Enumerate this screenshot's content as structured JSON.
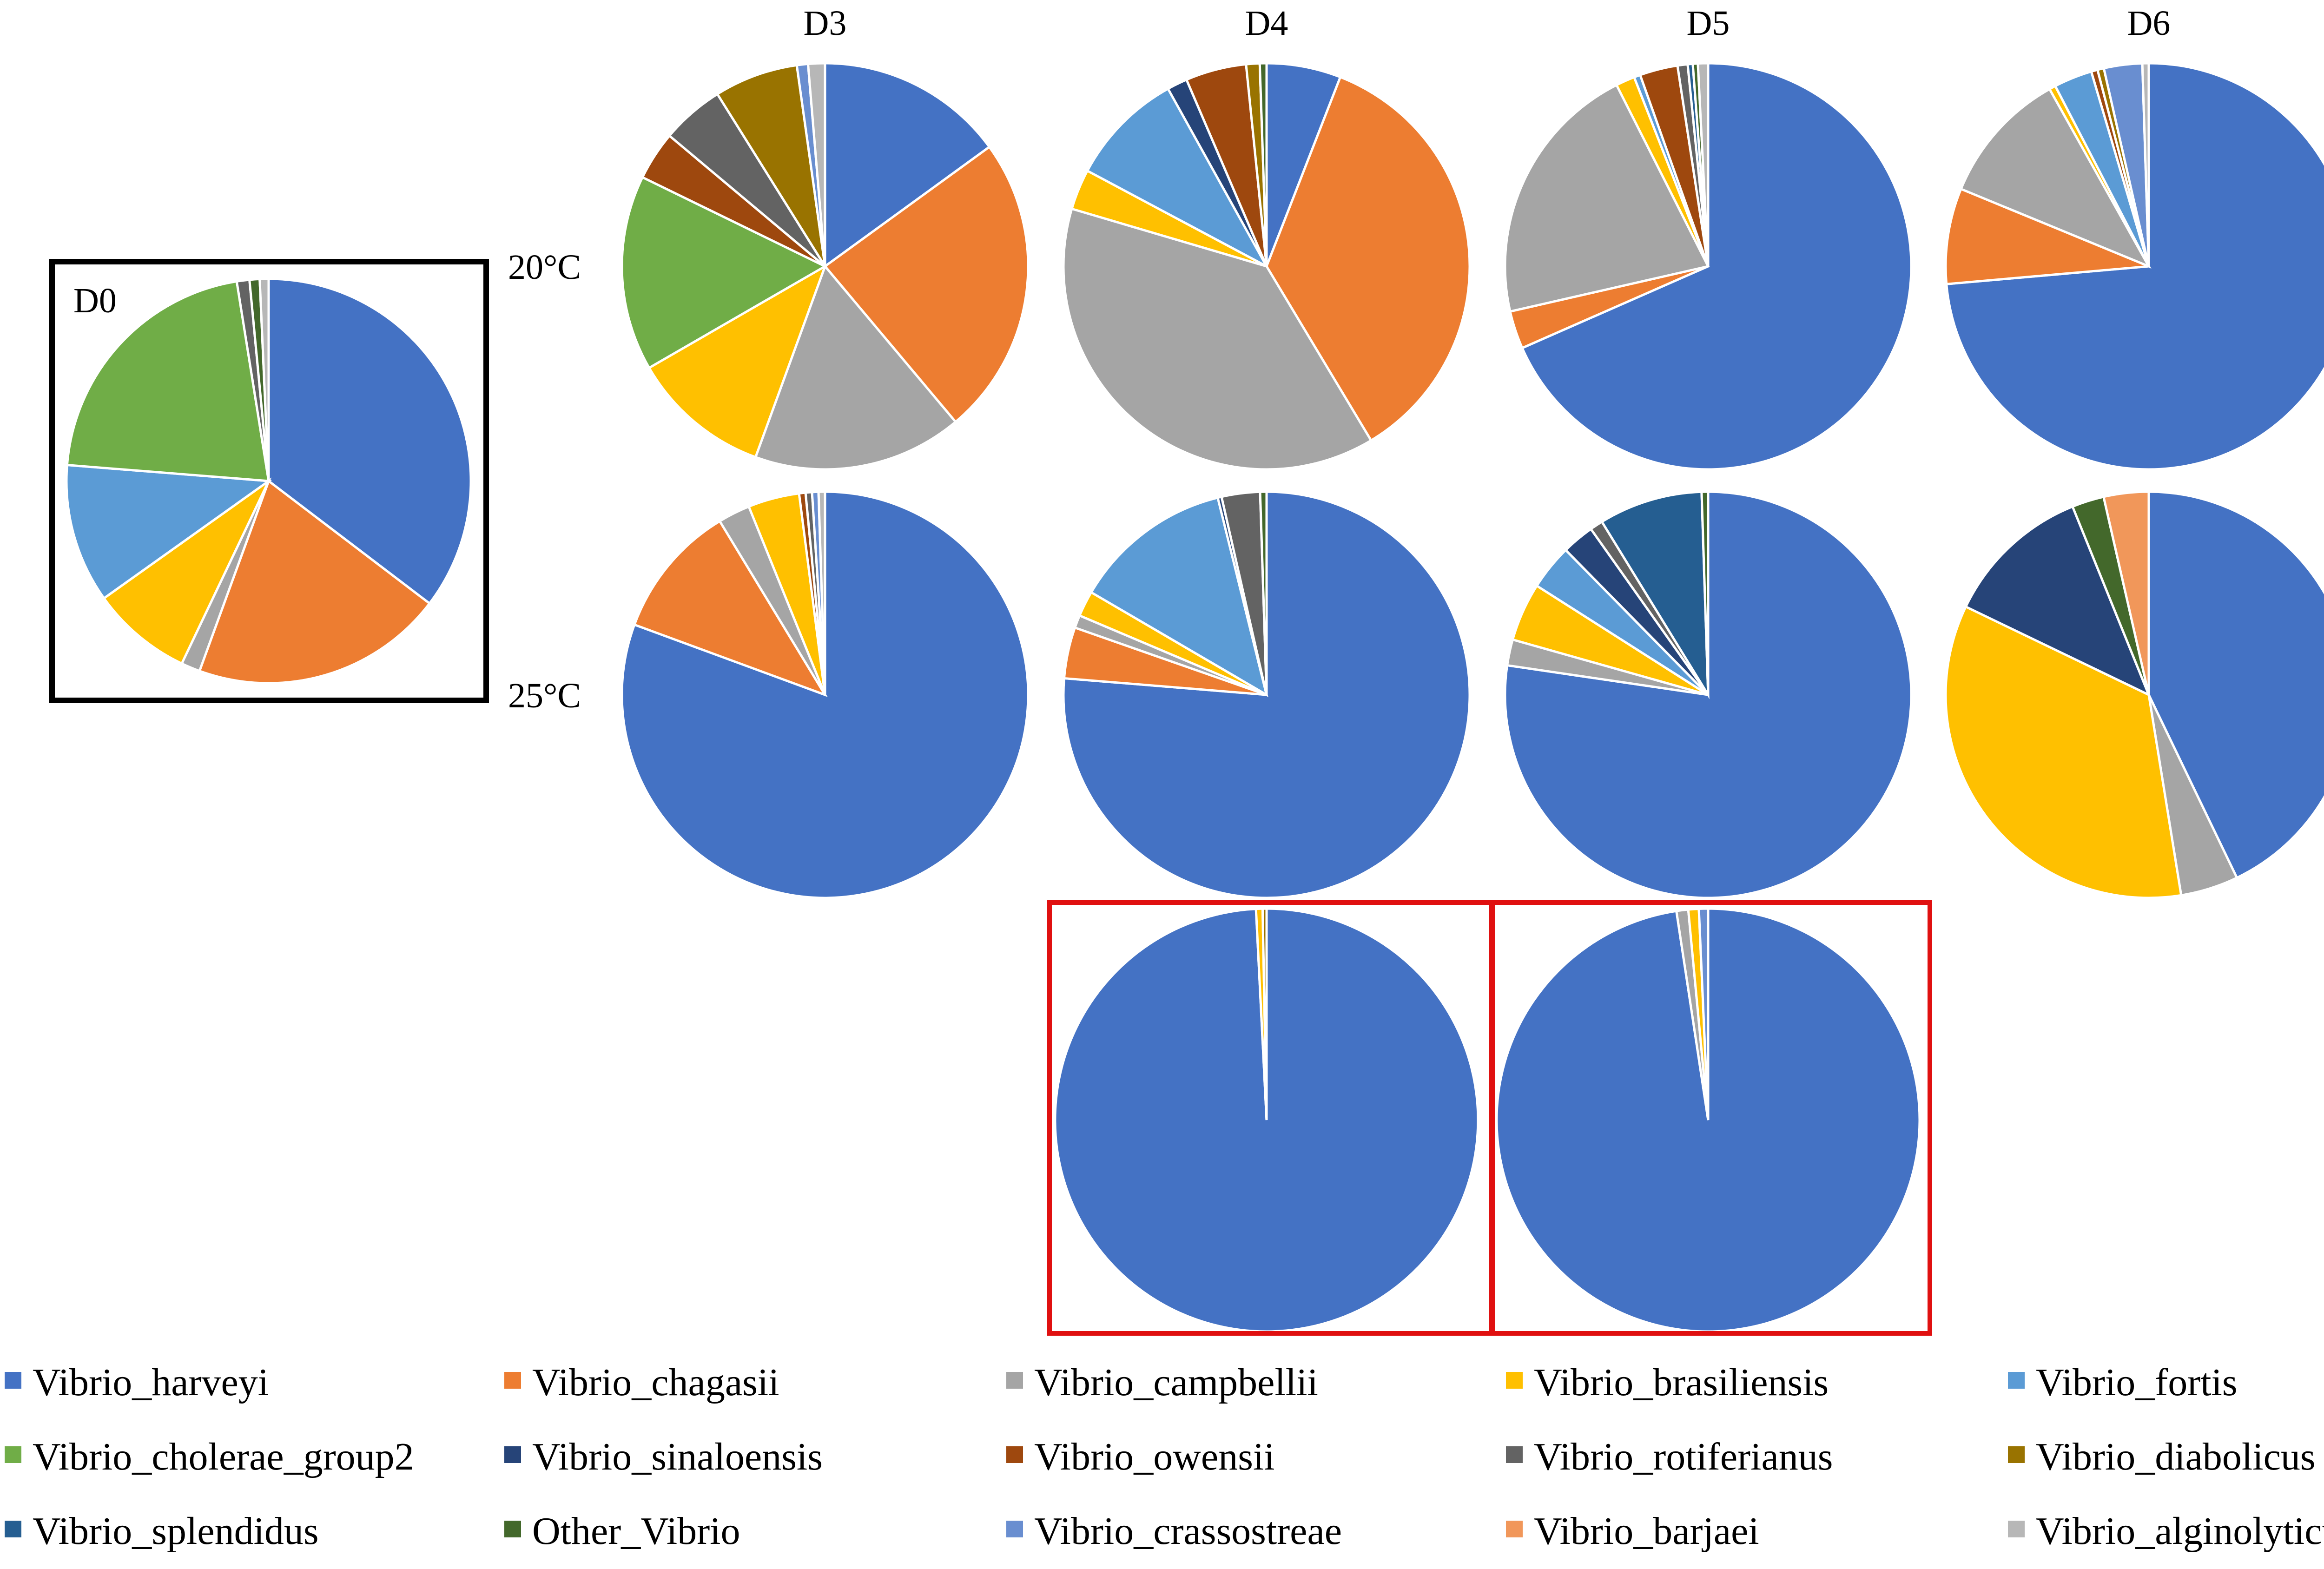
{
  "chart_data": {
    "type": "pie",
    "column_headers": [
      "D3",
      "D4",
      "D5",
      "D6"
    ],
    "row_labels": [
      "20°C",
      "25°C"
    ],
    "species": [
      "Vibrio_harveyi",
      "Vibrio_chagasii",
      "Vibrio_campbellii",
      "Vibrio_brasiliensis",
      "Vibrio_fortis",
      "Vibrio_cholerae_group2",
      "Vibrio_sinaloensis",
      "Vibrio_owensii",
      "Vibrio_rotiferianus",
      "Vibrio_diabolicus",
      "Vibrio_splendidus",
      "Other_Vibrio",
      "Vibrio_crassostreae",
      "Vibrio_barjaei",
      "Vibrio_alginolyticus"
    ],
    "colors": [
      "#4472C4",
      "#ED7D31",
      "#A5A5A5",
      "#FFC000",
      "#5B9BD5",
      "#70AD47",
      "#264478",
      "#9E480E",
      "#636363",
      "#997300",
      "#255E91",
      "#43682B",
      "#698ED0",
      "#F1975A",
      "#B7B7B7"
    ],
    "pies": [
      {
        "id": "D0",
        "label": "D0",
        "highlight": "black",
        "values": [
          35,
          20,
          1.5,
          8,
          11,
          21,
          0,
          0,
          1,
          0,
          0,
          0.8,
          0,
          0,
          0.7
        ]
      },
      {
        "id": "D3-20",
        "values": [
          13.5,
          21.5,
          15,
          10,
          0,
          14,
          0,
          3.5,
          4.5,
          6,
          0,
          0,
          0.8,
          0,
          1.2
        ]
      },
      {
        "id": "D4-20",
        "values": [
          5.5,
          33,
          35.5,
          3,
          8.5,
          0,
          1.5,
          4.5,
          0,
          1,
          0,
          0.5,
          0,
          0,
          0
        ]
      },
      {
        "id": "D5-20",
        "values": [
          68,
          3,
          21,
          1.5,
          0.5,
          0,
          0,
          3,
          0.8,
          0,
          0.4,
          0.4,
          0,
          0,
          0.8
        ]
      },
      {
        "id": "D6-20",
        "values": [
          72.5,
          7.5,
          10.5,
          0.5,
          3,
          0,
          0,
          0.5,
          0,
          0.5,
          0,
          0,
          3,
          0,
          0.5
        ]
      },
      {
        "id": "D3-25",
        "values": [
          79,
          10.5,
          2.5,
          4,
          0,
          0,
          0,
          0.5,
          0.5,
          0,
          0,
          0,
          0.5,
          0,
          0.5
        ]
      },
      {
        "id": "D4-25",
        "values": [
          75,
          4,
          1,
          2,
          12.5,
          0,
          0.3,
          0,
          3,
          0,
          0,
          0.5,
          0,
          0,
          0
        ]
      },
      {
        "id": "D5-25",
        "values": [
          75,
          0,
          2,
          4.5,
          3.5,
          0,
          2.5,
          0,
          1,
          0,
          8,
          0.5,
          0,
          0,
          0
        ]
      },
      {
        "id": "D6-25",
        "values": [
          42,
          0,
          4.5,
          34,
          0,
          0,
          11.5,
          0,
          0,
          0,
          0,
          2.5,
          0,
          3.5,
          0
        ]
      },
      {
        "id": "D4-red",
        "highlight": "red",
        "values": [
          99.2,
          0,
          0,
          0.5,
          0,
          0,
          0,
          0,
          0,
          0.3,
          0,
          0,
          0,
          0,
          0
        ]
      },
      {
        "id": "D5-red",
        "highlight": "red",
        "values": [
          97.6,
          0,
          0.9,
          0.8,
          0,
          0,
          0,
          0,
          0,
          0,
          0,
          0,
          0.7,
          0,
          0
        ]
      }
    ]
  }
}
